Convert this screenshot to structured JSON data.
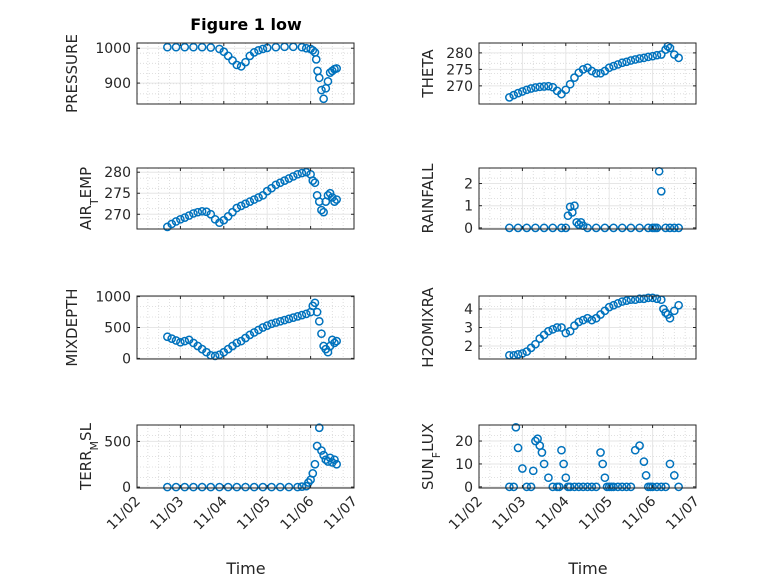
{
  "figure": {
    "title": "Figure 1 low",
    "x_label": "Time",
    "x_ticks": [
      "11/02",
      "11/03",
      "11/04",
      "11/05",
      "11/06",
      "11/07"
    ]
  },
  "colors": {
    "marker": "#0072BD",
    "axes": "#262626",
    "grid": "#e6e6e6",
    "minor_grid": "#d6d6d6"
  },
  "chart_data": [
    {
      "type": "scatter",
      "ylabel": "PRESSURE",
      "ylim": [
        840,
        1015
      ],
      "yticks": [
        900,
        1000
      ],
      "series": [
        {
          "marker": "circle-open",
          "x": [
            2.7,
            2.9,
            3.1,
            3.3,
            3.5,
            3.7,
            3.9,
            4.0,
            4.1,
            4.2,
            4.3,
            4.4,
            4.5,
            4.6,
            4.7,
            4.8,
            4.9,
            5.0,
            5.2,
            5.4,
            5.6,
            5.8,
            5.9,
            6.0,
            6.05,
            6.1,
            6.13,
            6.16,
            6.2,
            6.25,
            6.3,
            6.35,
            6.4,
            6.45,
            6.5,
            6.55,
            6.6
          ],
          "y": [
            1003,
            1003,
            1003,
            1003,
            1003,
            1002,
            998,
            990,
            978,
            965,
            952,
            948,
            960,
            978,
            988,
            994,
            998,
            1001,
            1003,
            1004,
            1004,
            1003,
            1000,
            998,
            994,
            988,
            968,
            935,
            915,
            880,
            855,
            885,
            905,
            930,
            935,
            940,
            942
          ]
        }
      ]
    },
    {
      "type": "scatter",
      "ylabel": "THETA",
      "ylim": [
        264.5,
        283
      ],
      "yticks": [
        270,
        275,
        280
      ],
      "series": [
        {
          "marker": "circle-open",
          "x": [
            2.7,
            2.8,
            2.9,
            3.0,
            3.1,
            3.2,
            3.3,
            3.4,
            3.5,
            3.6,
            3.7,
            3.8,
            3.9,
            4.0,
            4.1,
            4.2,
            4.3,
            4.4,
            4.5,
            4.6,
            4.7,
            4.8,
            4.9,
            5.0,
            5.1,
            5.2,
            5.3,
            5.4,
            5.5,
            5.6,
            5.7,
            5.8,
            5.9,
            6.0,
            6.1,
            6.2,
            6.3,
            6.35,
            6.4,
            6.5,
            6.6
          ],
          "y": [
            266.5,
            267.2,
            267.8,
            268.3,
            268.8,
            269.2,
            269.5,
            269.7,
            269.8,
            269.9,
            269.6,
            268.5,
            267.5,
            268.8,
            270.5,
            272.5,
            274.0,
            275.0,
            275.5,
            274.5,
            273.8,
            273.8,
            274.5,
            275.5,
            276.0,
            276.5,
            277.0,
            277.3,
            277.7,
            278.0,
            278.3,
            278.5,
            278.8,
            279.0,
            279.3,
            279.5,
            281.0,
            282.0,
            281.5,
            279.5,
            278.5
          ]
        }
      ]
    },
    {
      "type": "scatter",
      "ylabel": "AIR_TEMP",
      "ylim": [
        266.5,
        281
      ],
      "yticks": [
        270,
        275,
        280
      ],
      "series": [
        {
          "marker": "circle-open",
          "x": [
            2.7,
            2.8,
            2.9,
            3.0,
            3.1,
            3.2,
            3.3,
            3.4,
            3.5,
            3.6,
            3.7,
            3.8,
            3.9,
            4.0,
            4.1,
            4.2,
            4.3,
            4.4,
            4.5,
            4.6,
            4.7,
            4.8,
            4.9,
            5.0,
            5.1,
            5.2,
            5.3,
            5.4,
            5.5,
            5.6,
            5.7,
            5.8,
            5.9,
            6.0,
            6.05,
            6.1,
            6.15,
            6.2,
            6.25,
            6.3,
            6.35,
            6.4,
            6.45,
            6.5,
            6.55,
            6.6
          ],
          "y": [
            267.0,
            267.7,
            268.3,
            268.8,
            269.2,
            269.7,
            270.2,
            270.5,
            270.7,
            270.6,
            270.0,
            268.8,
            268.0,
            268.6,
            269.5,
            270.5,
            271.5,
            272.0,
            272.5,
            273.0,
            273.5,
            274.0,
            274.5,
            275.5,
            276.2,
            277.0,
            277.5,
            278.0,
            278.5,
            279.0,
            279.5,
            279.8,
            280.0,
            279.5,
            278.0,
            277.5,
            274.5,
            273.0,
            271.0,
            270.5,
            273.0,
            274.5,
            275.0,
            274.0,
            273.0,
            273.5
          ]
        }
      ]
    },
    {
      "type": "scatter",
      "ylabel": "RAINFALL",
      "ylim": [
        -0.05,
        2.7
      ],
      "yticks": [
        0,
        1,
        2
      ],
      "series": [
        {
          "marker": "circle-open",
          "x": [
            2.7,
            2.9,
            3.1,
            3.3,
            3.5,
            3.7,
            3.9,
            4.0,
            4.05,
            4.1,
            4.15,
            4.2,
            4.25,
            4.3,
            4.35,
            4.4,
            4.5,
            4.7,
            4.9,
            5.1,
            5.3,
            5.5,
            5.7,
            5.9,
            6.0,
            6.05,
            6.1,
            6.15,
            6.2,
            6.3,
            6.4,
            6.5,
            6.6
          ],
          "y": [
            0,
            0,
            0,
            0,
            0,
            0,
            0,
            0,
            0.55,
            0.95,
            0.7,
            1.0,
            0.25,
            0.15,
            0.25,
            0.1,
            0,
            0,
            0,
            0,
            0,
            0,
            0,
            0,
            0,
            0,
            0,
            2.55,
            1.65,
            0,
            0,
            0,
            0
          ]
        }
      ]
    },
    {
      "type": "scatter",
      "ylabel": "MIXDEPTH",
      "ylim": [
        -10,
        1010
      ],
      "yticks": [
        0,
        500,
        1000
      ],
      "series": [
        {
          "marker": "circle-open",
          "x": [
            2.7,
            2.8,
            2.9,
            3.0,
            3.1,
            3.2,
            3.3,
            3.4,
            3.5,
            3.6,
            3.7,
            3.8,
            3.9,
            4.0,
            4.1,
            4.2,
            4.3,
            4.4,
            4.5,
            4.6,
            4.7,
            4.8,
            4.9,
            5.0,
            5.1,
            5.2,
            5.3,
            5.4,
            5.5,
            5.6,
            5.7,
            5.8,
            5.9,
            6.0,
            6.05,
            6.1,
            6.15,
            6.2,
            6.25,
            6.3,
            6.35,
            6.4,
            6.45,
            6.5,
            6.55,
            6.6
          ],
          "y": [
            350,
            320,
            290,
            260,
            280,
            300,
            250,
            200,
            150,
            100,
            50,
            40,
            60,
            100,
            150,
            200,
            250,
            280,
            330,
            380,
            420,
            460,
            500,
            530,
            560,
            580,
            600,
            620,
            640,
            660,
            680,
            700,
            720,
            750,
            850,
            900,
            750,
            600,
            400,
            200,
            150,
            100,
            200,
            300,
            250,
            280
          ]
        }
      ]
    },
    {
      "type": "scatter",
      "ylabel": "H2OMIXRA",
      "ylim": [
        1.3,
        4.7
      ],
      "yticks": [
        2,
        3,
        4
      ],
      "series": [
        {
          "marker": "circle-open",
          "x": [
            2.7,
            2.8,
            2.9,
            3.0,
            3.1,
            3.2,
            3.3,
            3.4,
            3.5,
            3.6,
            3.7,
            3.8,
            3.9,
            4.0,
            4.1,
            4.2,
            4.3,
            4.4,
            4.5,
            4.6,
            4.7,
            4.8,
            4.9,
            5.0,
            5.1,
            5.2,
            5.3,
            5.4,
            5.5,
            5.6,
            5.7,
            5.8,
            5.9,
            6.0,
            6.1,
            6.2,
            6.25,
            6.3,
            6.35,
            6.4,
            6.5,
            6.6
          ],
          "y": [
            1.5,
            1.5,
            1.55,
            1.6,
            1.7,
            1.9,
            2.1,
            2.4,
            2.6,
            2.8,
            2.9,
            3.0,
            3.0,
            2.7,
            2.8,
            3.1,
            3.3,
            3.4,
            3.5,
            3.4,
            3.5,
            3.7,
            3.9,
            4.1,
            4.2,
            4.3,
            4.4,
            4.45,
            4.5,
            4.5,
            4.55,
            4.55,
            4.6,
            4.6,
            4.55,
            4.5,
            4.0,
            3.8,
            3.7,
            3.5,
            3.9,
            4.2
          ]
        }
      ]
    },
    {
      "type": "scatter",
      "ylabel": "TERR_MSL",
      "ylim": [
        -10,
        680
      ],
      "yticks": [
        0,
        500
      ],
      "series": [
        {
          "marker": "circle-open",
          "x": [
            2.7,
            2.9,
            3.1,
            3.3,
            3.5,
            3.7,
            3.9,
            4.1,
            4.3,
            4.5,
            4.7,
            4.9,
            5.1,
            5.3,
            5.5,
            5.7,
            5.8,
            5.9,
            5.95,
            6.0,
            6.05,
            6.1,
            6.15,
            6.2,
            6.25,
            6.3,
            6.35,
            6.4,
            6.45,
            6.5,
            6.55,
            6.6
          ],
          "y": [
            0,
            0,
            0,
            0,
            0,
            0,
            0,
            0,
            0,
            0,
            0,
            0,
            0,
            0,
            0,
            0,
            5,
            10,
            50,
            80,
            150,
            250,
            450,
            650,
            400,
            350,
            300,
            280,
            320,
            270,
            300,
            250
          ]
        }
      ]
    },
    {
      "type": "scatter",
      "ylabel": "SUN_FLUX",
      "ylim": [
        -0.5,
        27
      ],
      "yticks": [
        0,
        10,
        20
      ],
      "series": [
        {
          "marker": "circle-open",
          "x": [
            2.7,
            2.8,
            2.85,
            2.9,
            3.0,
            3.1,
            3.2,
            3.25,
            3.3,
            3.35,
            3.4,
            3.45,
            3.5,
            3.6,
            3.7,
            3.8,
            3.85,
            3.9,
            3.95,
            4.0,
            4.05,
            4.1,
            4.2,
            4.3,
            4.4,
            4.5,
            4.6,
            4.7,
            4.8,
            4.85,
            4.9,
            4.95,
            5.0,
            5.05,
            5.1,
            5.2,
            5.3,
            5.4,
            5.5,
            5.6,
            5.7,
            5.8,
            5.85,
            5.9,
            5.95,
            6.0,
            6.1,
            6.2,
            6.3,
            6.4,
            6.5,
            6.6
          ],
          "y": [
            0,
            0,
            26,
            17,
            8,
            0,
            0,
            7,
            20,
            21,
            18,
            15,
            10,
            4,
            0,
            0,
            0,
            16,
            10,
            4,
            0,
            0,
            0,
            0,
            0,
            0,
            0,
            0,
            15,
            10,
            4,
            0,
            0,
            0,
            0,
            0,
            0,
            0,
            0,
            16,
            18,
            11,
            5,
            0,
            0,
            0,
            0,
            0,
            0,
            10,
            5,
            0
          ]
        }
      ]
    }
  ]
}
